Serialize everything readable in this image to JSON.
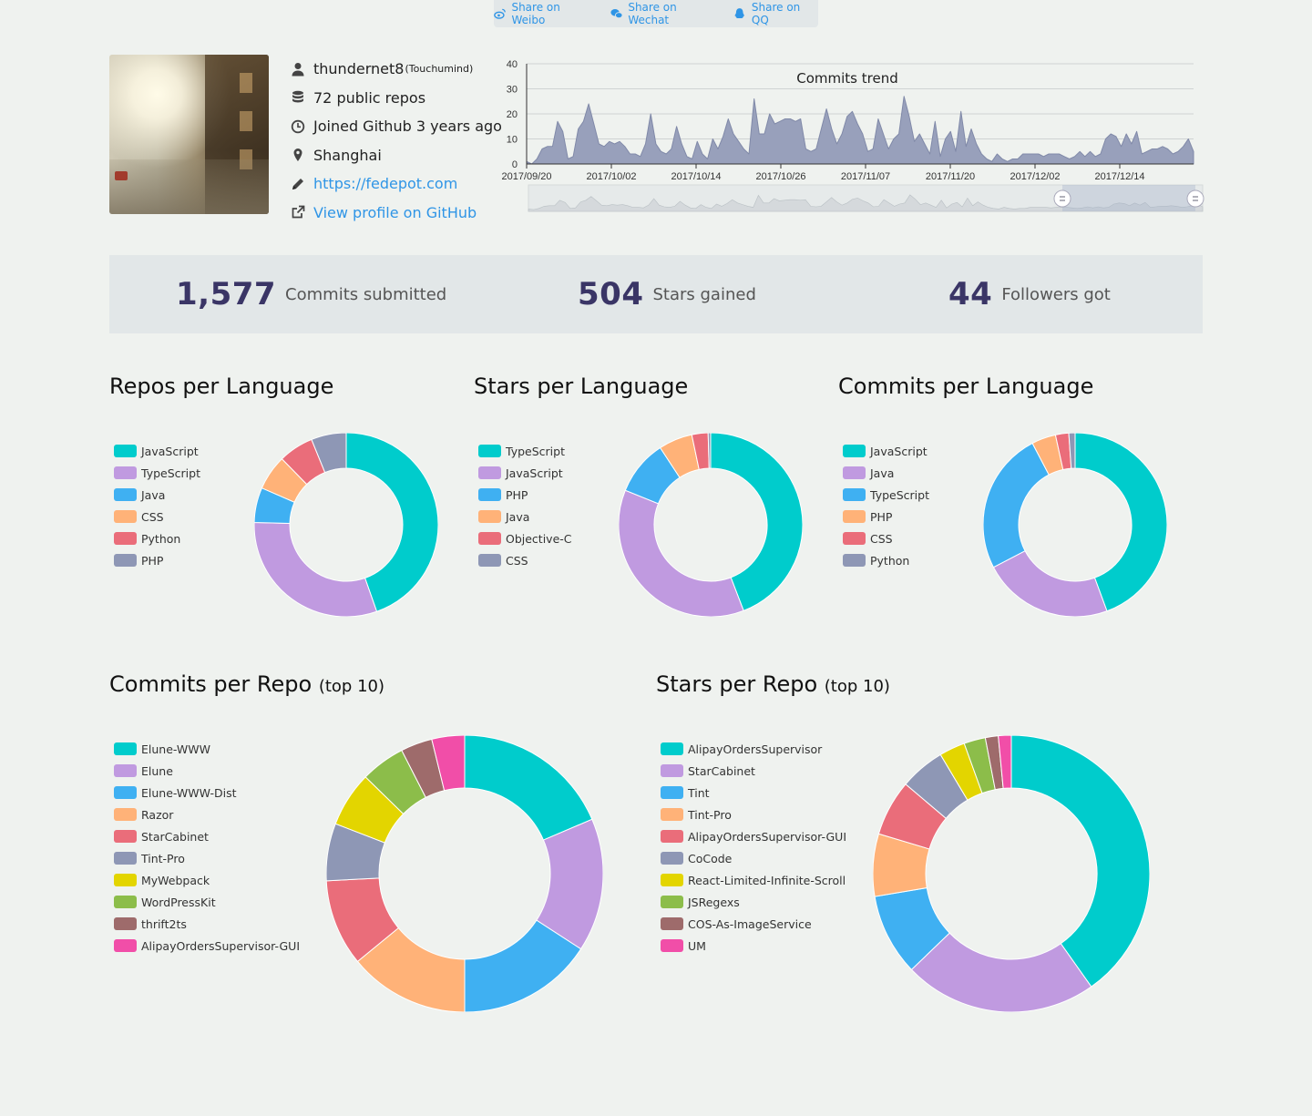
{
  "share": {
    "weibo": "Share on Weibo",
    "wechat": "Share on Wechat",
    "qq": "Share on QQ"
  },
  "profile": {
    "username": "thundernet8",
    "nickname": "(Touchumind)",
    "repos": "72 public repos",
    "joined": "Joined Github 3 years ago",
    "location": "Shanghai",
    "website": "https://fedepot.com",
    "github_link": "View profile on GitHub"
  },
  "stats": {
    "commits_num": "1,577",
    "commits_label": "Commits submitted",
    "stars_num": "504",
    "stars_label": "Stars gained",
    "followers_num": "44",
    "followers_label": "Followers got"
  },
  "sections": {
    "repos_lang": "Repos per Language",
    "stars_lang": "Stars per Language",
    "commits_lang": "Commits per Language",
    "commits_repo": "Commits per Repo",
    "stars_repo": "Stars per Repo",
    "top10": "(top 10)"
  },
  "colors": {
    "palette": [
      "#00cccc",
      "#c09ae0",
      "#3fb0f2",
      "#ffb278",
      "#ea6d7a",
      "#8e97b5",
      "#e3d500",
      "#8cbd4a",
      "#9e6b6b",
      "#f14ea8"
    ],
    "trend_fill": "#98a0bb",
    "trend_line": "#8089a8"
  },
  "chart_data": [
    {
      "type": "area",
      "title": "Commits trend",
      "x_ticks": [
        "2017/09/20",
        "2017/10/02",
        "2017/10/14",
        "2017/10/26",
        "2017/11/07",
        "2017/11/20",
        "2017/12/02",
        "2017/12/14"
      ],
      "ylim": [
        0,
        40
      ],
      "y_ticks": [
        0,
        10,
        20,
        30,
        40
      ],
      "values": [
        1,
        0,
        2,
        6,
        7,
        7,
        17,
        13,
        2,
        3,
        14,
        17,
        24,
        16,
        8,
        7,
        9,
        8,
        9,
        7,
        4,
        4,
        3,
        8,
        20,
        8,
        5,
        4,
        6,
        15,
        8,
        3,
        2,
        9,
        4,
        2,
        10,
        6,
        11,
        18,
        12,
        9,
        6,
        4,
        26,
        12,
        12,
        20,
        16,
        17,
        18,
        18,
        17,
        18,
        6,
        5,
        6,
        14,
        22,
        14,
        8,
        12,
        19,
        21,
        16,
        12,
        5,
        6,
        18,
        12,
        6,
        10,
        12,
        27,
        19,
        9,
        12,
        8,
        4,
        17,
        3,
        10,
        13,
        5,
        21,
        7,
        14,
        8,
        4,
        2,
        1,
        4,
        2,
        1,
        2,
        2,
        4,
        4,
        4,
        4,
        3,
        4,
        4,
        4,
        3,
        2,
        3,
        5,
        3,
        5,
        3,
        4,
        10,
        12,
        11,
        7,
        12,
        8,
        13,
        4,
        5,
        6,
        6,
        7,
        6,
        4,
        5,
        7,
        10,
        5
      ]
    },
    {
      "type": "pie",
      "title": "Repos per Language",
      "labels": [
        "JavaScript",
        "TypeScript",
        "Java",
        "CSS",
        "Python",
        "PHP"
      ],
      "values": [
        29,
        20,
        4,
        4,
        4,
        4
      ]
    },
    {
      "type": "pie",
      "title": "Stars per Language",
      "labels": [
        "TypeScript",
        "JavaScript",
        "PHP",
        "Java",
        "Objective-C",
        "CSS"
      ],
      "values": [
        201,
        168,
        44,
        27,
        13,
        2
      ]
    },
    {
      "type": "pie",
      "title": "Commits per Language",
      "labels": [
        "JavaScript",
        "Java",
        "TypeScript",
        "PHP",
        "CSS",
        "Python"
      ],
      "values": [
        647,
        335,
        364,
        62,
        34,
        16
      ]
    },
    {
      "type": "pie",
      "title": "Commits per Repo (top 10)",
      "labels": [
        "Elune-WWW",
        "Elune",
        "Elune-WWW-Dist",
        "Razor",
        "StarCabinet",
        "Tint-Pro",
        "MyWebpack",
        "WordPressKit",
        "thrift2ts",
        "AlipayOrdersSupervisor-GUI"
      ],
      "values": [
        136,
        114,
        116,
        103,
        74,
        49,
        47,
        38,
        27,
        28
      ]
    },
    {
      "type": "pie",
      "title": "Stars per Repo (top 10)",
      "labels": [
        "AlipayOrdersSupervisor",
        "StarCabinet",
        "Tint",
        "Tint-Pro",
        "AlipayOrdersSupervisor-GUI",
        "CoCode",
        "React-Limited-Infinite-Scroll",
        "JSRegexs",
        "COS-As-ImageService",
        "UM"
      ],
      "values": [
        160,
        90,
        38,
        29,
        26,
        21,
        12,
        10,
        6,
        6
      ]
    }
  ]
}
